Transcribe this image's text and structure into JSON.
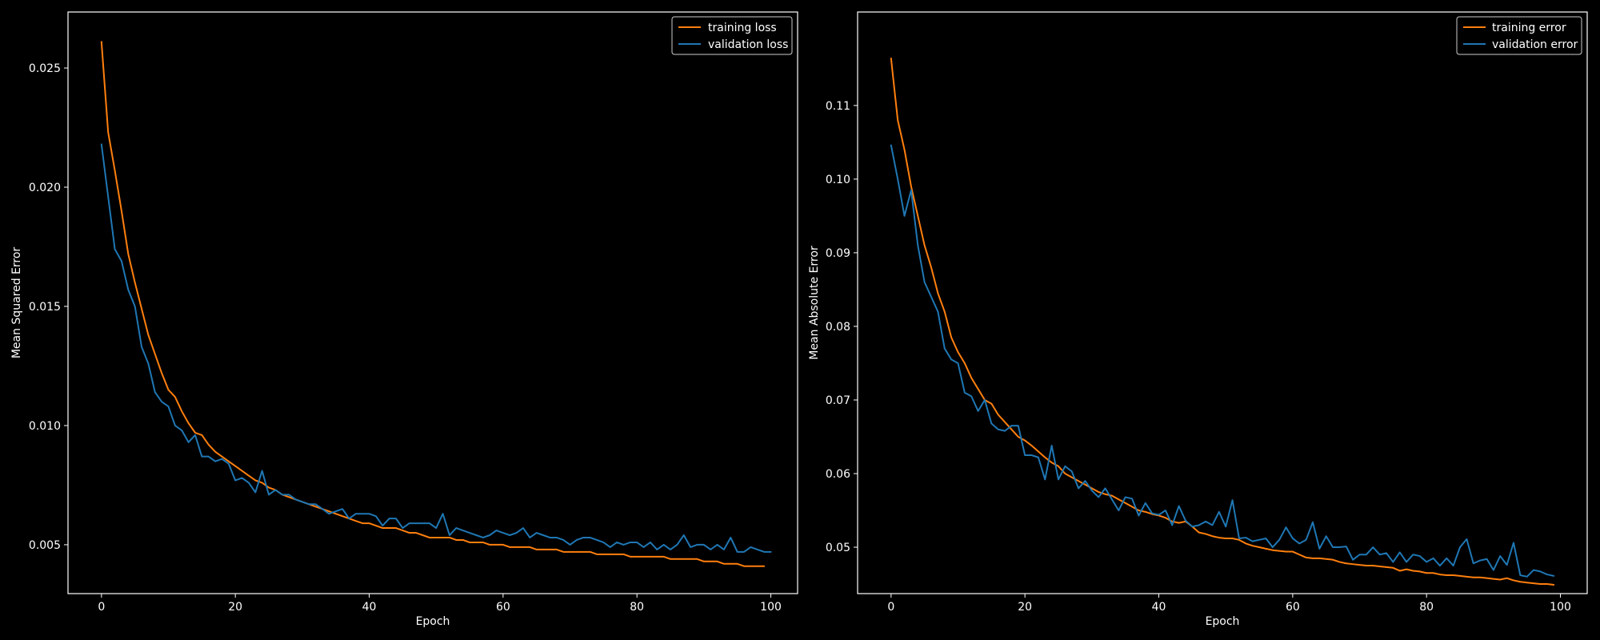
{
  "chart_data": [
    {
      "type": "line",
      "title": "",
      "xlabel": "Epoch",
      "ylabel": "Mean Squared Error",
      "xlim": [
        -5,
        104
      ],
      "ylim": [
        0.00295,
        0.02735
      ],
      "xticks": [
        0,
        20,
        40,
        60,
        80,
        100
      ],
      "xtick_labels": [
        "0",
        "20",
        "40",
        "60",
        "80",
        "100"
      ],
      "yticks": [
        0.005,
        0.01,
        0.015,
        0.02,
        0.025
      ],
      "ytick_labels": [
        "0.005",
        "0.010",
        "0.015",
        "0.020",
        "0.025"
      ],
      "grid": false,
      "legend_position": "top-right",
      "x_start": 0,
      "series": [
        {
          "name": "training loss",
          "color": "#ff7f0e",
          "values": [
            0.0261,
            0.0223,
            0.0207,
            0.019,
            0.0172,
            0.016,
            0.0149,
            0.0138,
            0.013,
            0.0122,
            0.0115,
            0.0112,
            0.0106,
            0.0101,
            0.0097,
            0.0096,
            0.0092,
            0.0089,
            0.0087,
            0.0085,
            0.0083,
            0.0081,
            0.0079,
            0.0077,
            0.0076,
            0.0074,
            0.0073,
            0.0071,
            0.007,
            0.0069,
            0.0068,
            0.0067,
            0.0066,
            0.0065,
            0.0064,
            0.0063,
            0.0062,
            0.0061,
            0.006,
            0.0059,
            0.0059,
            0.0058,
            0.0057,
            0.0057,
            0.0057,
            0.0056,
            0.0055,
            0.0055,
            0.0054,
            0.0053,
            0.0053,
            0.0053,
            0.0053,
            0.0052,
            0.0052,
            0.0051,
            0.0051,
            0.0051,
            0.005,
            0.005,
            0.005,
            0.0049,
            0.0049,
            0.0049,
            0.0049,
            0.0048,
            0.0048,
            0.0048,
            0.0048,
            0.0047,
            0.0047,
            0.0047,
            0.0047,
            0.0047,
            0.0046,
            0.0046,
            0.0046,
            0.0046,
            0.0046,
            0.0045,
            0.0045,
            0.0045,
            0.0045,
            0.0045,
            0.0045,
            0.0044,
            0.0044,
            0.0044,
            0.0044,
            0.0044,
            0.0043,
            0.0043,
            0.0043,
            0.0042,
            0.0042,
            0.0042,
            0.0041,
            0.0041,
            0.0041,
            0.0041
          ]
        },
        {
          "name": "validation loss",
          "color": "#1f77b4",
          "values": [
            0.0218,
            0.0196,
            0.0174,
            0.0169,
            0.0157,
            0.015,
            0.0133,
            0.0126,
            0.0114,
            0.011,
            0.0108,
            0.01,
            0.0098,
            0.0093,
            0.0096,
            0.0087,
            0.0087,
            0.0085,
            0.0086,
            0.0084,
            0.0077,
            0.0078,
            0.0076,
            0.0072,
            0.0081,
            0.0071,
            0.0073,
            0.0071,
            0.0071,
            0.0069,
            0.0068,
            0.0067,
            0.0067,
            0.0065,
            0.0063,
            0.0064,
            0.0065,
            0.0061,
            0.0063,
            0.0063,
            0.0063,
            0.0062,
            0.0058,
            0.0061,
            0.0061,
            0.0057,
            0.0059,
            0.0059,
            0.0059,
            0.0059,
            0.0057,
            0.0063,
            0.0054,
            0.0057,
            0.0056,
            0.0055,
            0.0054,
            0.0053,
            0.0054,
            0.0056,
            0.0055,
            0.0054,
            0.0055,
            0.0057,
            0.0053,
            0.0055,
            0.0054,
            0.0053,
            0.0053,
            0.0052,
            0.005,
            0.0052,
            0.0053,
            0.0053,
            0.0052,
            0.0051,
            0.0049,
            0.0051,
            0.005,
            0.0051,
            0.0051,
            0.0049,
            0.0051,
            0.0048,
            0.005,
            0.0048,
            0.005,
            0.0054,
            0.0049,
            0.005,
            0.005,
            0.0048,
            0.005,
            0.0048,
            0.0053,
            0.0047,
            0.0047,
            0.0049,
            0.0048,
            0.0047,
            0.0047
          ]
        }
      ]
    },
    {
      "type": "line",
      "title": "",
      "xlabel": "Epoch",
      "ylabel": "Mean Absolute Error",
      "xlim": [
        -5,
        104
      ],
      "ylim": [
        0.0437,
        0.1227
      ],
      "xticks": [
        0,
        20,
        40,
        60,
        80,
        100
      ],
      "xtick_labels": [
        "0",
        "20",
        "40",
        "60",
        "80",
        "100"
      ],
      "yticks": [
        0.05,
        0.06,
        0.07,
        0.08,
        0.09,
        0.1,
        0.11
      ],
      "ytick_labels": [
        "0.05",
        "0.06",
        "0.07",
        "0.08",
        "0.09",
        "0.10",
        "0.11"
      ],
      "grid": false,
      "legend_position": "top-right",
      "x_start": 0,
      "series": [
        {
          "name": "training error",
          "color": "#ff7f0e",
          "values": [
            0.1164,
            0.108,
            0.104,
            0.099,
            0.095,
            0.091,
            0.088,
            0.0845,
            0.082,
            0.0785,
            0.0765,
            0.075,
            0.073,
            0.0715,
            0.07,
            0.0695,
            0.068,
            0.067,
            0.066,
            0.065,
            0.0645,
            0.0638,
            0.063,
            0.0622,
            0.0615,
            0.061,
            0.06,
            0.0595,
            0.059,
            0.0585,
            0.058,
            0.0575,
            0.0572,
            0.057,
            0.0565,
            0.056,
            0.0555,
            0.055,
            0.0548,
            0.0545,
            0.0543,
            0.054,
            0.0535,
            0.0533,
            0.0535,
            0.0528,
            0.052,
            0.0518,
            0.0515,
            0.0513,
            0.0512,
            0.0512,
            0.051,
            0.0505,
            0.0502,
            0.05,
            0.0498,
            0.0496,
            0.0495,
            0.0494,
            0.0494,
            0.049,
            0.0486,
            0.0485,
            0.0485,
            0.0484,
            0.0483,
            0.048,
            0.0478,
            0.0477,
            0.0476,
            0.0475,
            0.0475,
            0.0474,
            0.0473,
            0.0472,
            0.0468,
            0.047,
            0.0468,
            0.0467,
            0.0465,
            0.0465,
            0.0463,
            0.0462,
            0.0462,
            0.0461,
            0.046,
            0.0459,
            0.0459,
            0.0458,
            0.0457,
            0.0456,
            0.0458,
            0.0455,
            0.0453,
            0.0452,
            0.0451,
            0.045,
            0.045,
            0.0449
          ]
        },
        {
          "name": "validation error",
          "color": "#1f77b4",
          "values": [
            0.1046,
            0.1,
            0.095,
            0.0985,
            0.091,
            0.086,
            0.084,
            0.082,
            0.077,
            0.0755,
            0.075,
            0.071,
            0.0705,
            0.0685,
            0.07,
            0.0668,
            0.066,
            0.0658,
            0.0665,
            0.0665,
            0.0625,
            0.0625,
            0.0622,
            0.0592,
            0.0638,
            0.0592,
            0.061,
            0.0603,
            0.058,
            0.059,
            0.0577,
            0.0568,
            0.058,
            0.0565,
            0.055,
            0.0568,
            0.0566,
            0.0543,
            0.056,
            0.0546,
            0.0544,
            0.055,
            0.053,
            0.0556,
            0.0536,
            0.0528,
            0.053,
            0.0535,
            0.053,
            0.0548,
            0.0528,
            0.0564,
            0.0512,
            0.0513,
            0.0508,
            0.051,
            0.0512,
            0.05,
            0.051,
            0.0527,
            0.0512,
            0.0505,
            0.051,
            0.0534,
            0.0498,
            0.0515,
            0.05,
            0.05,
            0.0501,
            0.0483,
            0.049,
            0.049,
            0.05,
            0.049,
            0.0492,
            0.048,
            0.0493,
            0.048,
            0.049,
            0.0488,
            0.048,
            0.0485,
            0.0475,
            0.0485,
            0.0475,
            0.05,
            0.0511,
            0.0478,
            0.0482,
            0.0484,
            0.0469,
            0.0488,
            0.0476,
            0.0506,
            0.0462,
            0.046,
            0.0469,
            0.0467,
            0.0463,
            0.0461
          ]
        }
      ]
    }
  ]
}
